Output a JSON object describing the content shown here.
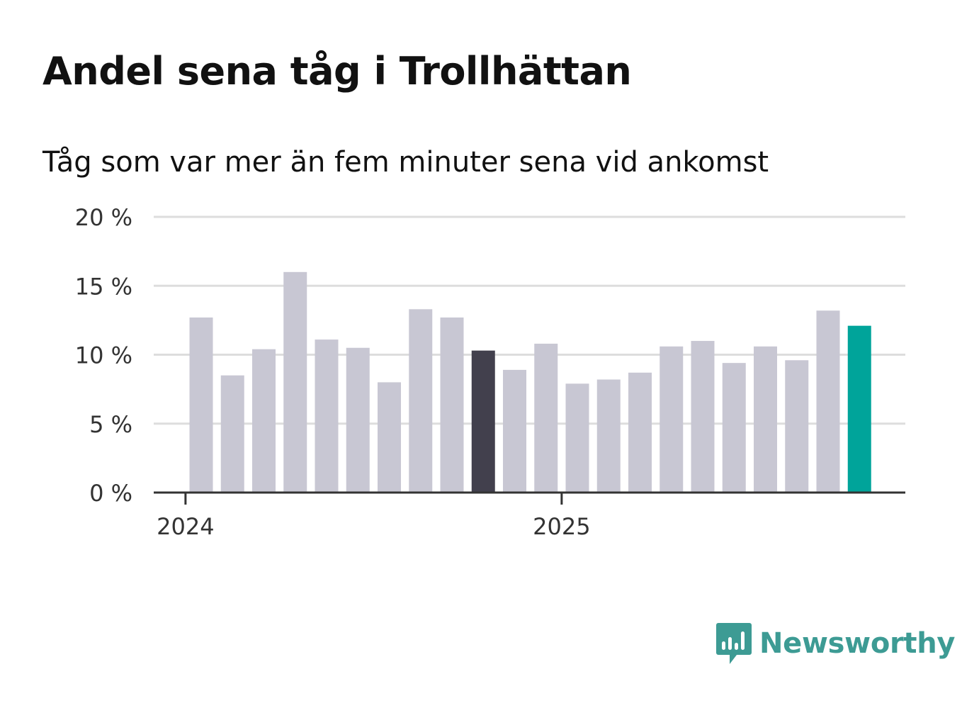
{
  "colors": {
    "bar": "#c8c7d3",
    "highlight_dark": "#42404d",
    "highlight_accent": "#00a49a",
    "grid": "#dddddd",
    "axis": "#333333",
    "brand": "#3d9b94"
  },
  "logo": {
    "icon": "newsworthy-chart-bubble-icon",
    "text": "Newsworthy"
  },
  "chart_data": {
    "type": "bar",
    "title": "Andel sena tåg i Trollhättan",
    "subtitle": "Tåg som var mer än fem minuter sena vid ankomst",
    "xlabel": "",
    "ylabel": "",
    "ylim": [
      0,
      20
    ],
    "yticks": [
      0,
      5,
      10,
      15,
      20
    ],
    "ytick_labels": [
      "0 %",
      "5 %",
      "10 %",
      "15 %",
      "20 %"
    ],
    "xticks": [
      {
        "label": "2024",
        "index": -0.5
      },
      {
        "label": "2025",
        "index": 11.5
      }
    ],
    "grid": true,
    "values": [
      12.7,
      8.5,
      10.4,
      16.0,
      11.1,
      10.5,
      8.0,
      13.3,
      12.7,
      10.3,
      8.9,
      10.8,
      7.9,
      8.2,
      8.7,
      10.6,
      11.0,
      9.4,
      10.6,
      9.6,
      13.2,
      12.1
    ],
    "highlights": {
      "9": "dark",
      "21": "accent"
    }
  }
}
